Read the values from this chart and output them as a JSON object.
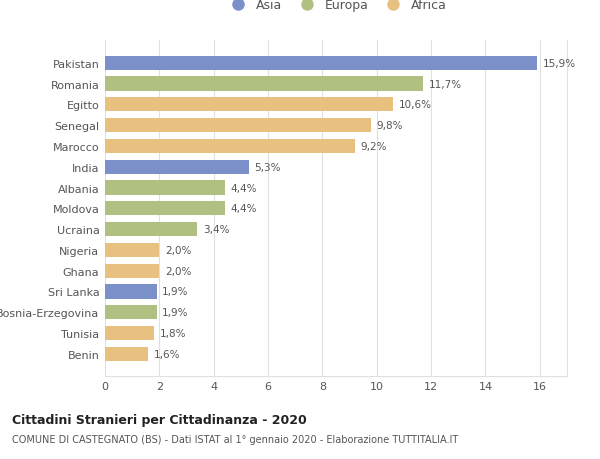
{
  "countries": [
    "Pakistan",
    "Romania",
    "Egitto",
    "Senegal",
    "Marocco",
    "India",
    "Albania",
    "Moldova",
    "Ucraina",
    "Nigeria",
    "Ghana",
    "Sri Lanka",
    "Bosnia-Erzegovina",
    "Tunisia",
    "Benin"
  ],
  "values": [
    15.9,
    11.7,
    10.6,
    9.8,
    9.2,
    5.3,
    4.4,
    4.4,
    3.4,
    2.0,
    2.0,
    1.9,
    1.9,
    1.8,
    1.6
  ],
  "labels": [
    "15,9%",
    "11,7%",
    "10,6%",
    "9,8%",
    "9,2%",
    "5,3%",
    "4,4%",
    "4,4%",
    "3,4%",
    "2,0%",
    "2,0%",
    "1,9%",
    "1,9%",
    "1,8%",
    "1,6%"
  ],
  "continents": [
    "Asia",
    "Europa",
    "Africa",
    "Africa",
    "Africa",
    "Asia",
    "Europa",
    "Europa",
    "Europa",
    "Africa",
    "Africa",
    "Asia",
    "Europa",
    "Africa",
    "Africa"
  ],
  "colors": {
    "Asia": "#7b8fc8",
    "Europa": "#afc080",
    "Africa": "#e8c080"
  },
  "xlim": [
    0,
    17
  ],
  "xticks": [
    0,
    2,
    4,
    6,
    8,
    10,
    12,
    14,
    16
  ],
  "title": "Cittadini Stranieri per Cittadinanza - 2020",
  "subtitle": "COMUNE DI CASTEGNATO (BS) - Dati ISTAT al 1° gennaio 2020 - Elaborazione TUTTITALIA.IT",
  "background_color": "#ffffff",
  "grid_color": "#e0e0e0"
}
